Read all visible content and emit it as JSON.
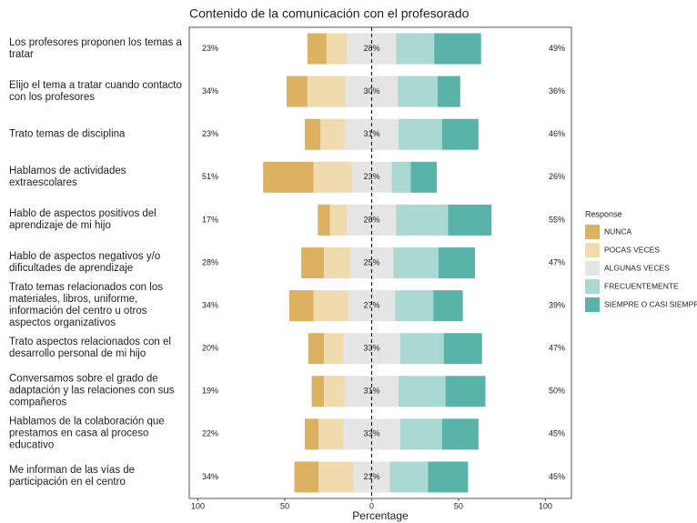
{
  "chart_data": {
    "type": "diverging-bar",
    "title": "Contenido de la comunicación con el profesorado",
    "x_label": "Percentage",
    "legend_title": "Response",
    "legend_position": "right",
    "categories": [
      "Los profesores proponen los temas a tratar",
      "Elijo el tema a tratar cuando contacto con los profesores",
      "Trato temas de disciplina",
      "Hablamos de actividades extraescolares",
      "Hablo de aspectos positivos del aprendizaje de mi hijo",
      "Hablo de aspectos negativos y/o dificultades de aprendizaje",
      "Trato temas relacionados con los materiales, libros, uniforme, información del centro u otros aspectos organizativos",
      "Trato aspectos relacionados con el desarrollo personal de mi hijo",
      "Conversamos sobre el grado de adaptación y las relaciones con sus compañeros",
      "Hablamos de la colaboración que prestamos en casa al proceso educativo",
      "Me informan de las vías de participación en el centro"
    ],
    "series": [
      {
        "name": "NUNCA",
        "color": "#dcb262",
        "side": "low",
        "values": [
          11,
          12,
          9,
          29,
          7,
          13,
          14,
          9,
          7,
          8,
          14
        ]
      },
      {
        "name": "POCAS VECES",
        "color": "#efdbae",
        "side": "low",
        "values": [
          12,
          22,
          14,
          22,
          10,
          15,
          20,
          11,
          12,
          14,
          20
        ]
      },
      {
        "name": "ALGUNAS VECES",
        "color": "#e5e5e5",
        "side": "neutral",
        "values": [
          28,
          30,
          31,
          23,
          28,
          25,
          27,
          33,
          31,
          33,
          21
        ],
        "value_labels": [
          "28%",
          "30%",
          "31%",
          "23%",
          "28%",
          "25%",
          "27%",
          "33%",
          "31%",
          "33%",
          "21%"
        ]
      },
      {
        "name": "FRECUENTEMENTE",
        "color": "#aad9d4",
        "side": "high",
        "values": [
          22,
          23,
          25,
          11,
          30,
          26,
          22,
          25,
          27,
          24,
          22
        ]
      },
      {
        "name": "SIEMPRE O CASI SIEMPRE",
        "color": "#5ab3a9",
        "side": "high",
        "values": [
          27,
          13,
          21,
          15,
          25,
          21,
          17,
          22,
          23,
          21,
          23
        ]
      }
    ],
    "low_labels": [
      "23%",
      "34%",
      "23%",
      "51%",
      "17%",
      "28%",
      "34%",
      "20%",
      "19%",
      "22%",
      "34%"
    ],
    "high_labels": [
      "49%",
      "36%",
      "46%",
      "26%",
      "55%",
      "47%",
      "39%",
      "47%",
      "50%",
      "45%",
      "45%"
    ],
    "xlim": [
      -105,
      115
    ],
    "xticks": [
      {
        "value": -100,
        "label": "100"
      },
      {
        "value": -50,
        "label": "50"
      },
      0,
      50,
      100
    ]
  }
}
